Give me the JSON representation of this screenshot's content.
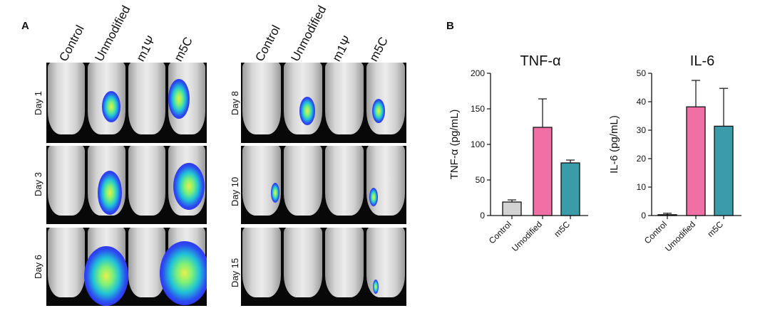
{
  "panel_a": {
    "letter": "A",
    "columns": [
      "Control",
      "Unmodified",
      "m1Ψ",
      "m5C"
    ],
    "left_days": [
      "Day 1",
      "Day 3",
      "Day 6"
    ],
    "right_days": [
      "Day 8",
      "Day 10",
      "Day 15"
    ]
  },
  "panel_b": {
    "letter": "B"
  },
  "colors": {
    "control": "#d3d3d3",
    "unmodified": "#f06fa4",
    "m5C": "#3a9ca8",
    "signal_core": "#e8f04a",
    "signal_edge": "#3a1df0"
  },
  "chart_data": [
    {
      "type": "bar",
      "title": "TNF-α",
      "ylabel": "TNF-α (pg/mL)",
      "xlabel": "",
      "ylim": [
        0,
        200
      ],
      "yticks": [
        "0",
        "50",
        "100",
        "150",
        "200"
      ],
      "categories": [
        "Control",
        "Umodified",
        "m5C"
      ],
      "values": [
        19,
        124,
        74
      ],
      "errors": [
        3,
        40,
        4
      ],
      "colors": [
        "#d3d3d3",
        "#f06fa4",
        "#3a9ca8"
      ]
    },
    {
      "type": "bar",
      "title": "IL-6",
      "ylabel": "IL-6 (pg/mL)",
      "xlabel": "",
      "ylim": [
        0,
        50
      ],
      "yticks": [
        "0",
        "10",
        "20",
        "30",
        "40",
        "50"
      ],
      "categories": [
        "Control",
        "Umodified",
        "m5C"
      ],
      "values": [
        0.3,
        38.2,
        31.4
      ],
      "errors": [
        0.5,
        9.3,
        13.3
      ],
      "colors": [
        "#d3d3d3",
        "#f06fa4",
        "#3a9ca8"
      ]
    }
  ]
}
